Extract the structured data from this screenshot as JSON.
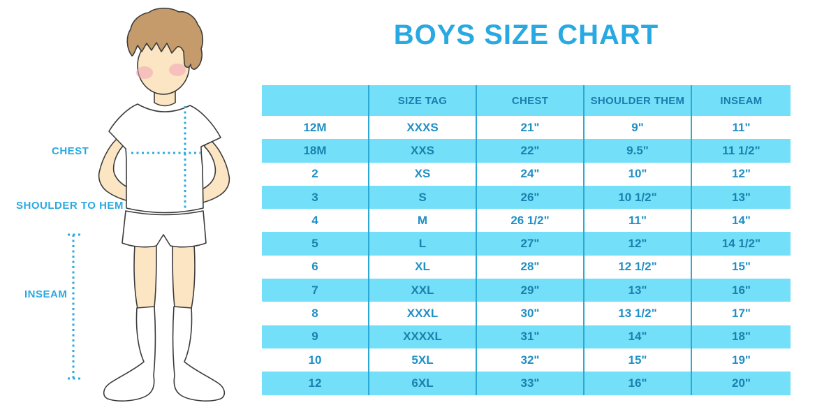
{
  "title": "BOYS SIZE CHART",
  "colors": {
    "accent_blue": "#29A9E1",
    "row_light_blue": "#74DFF8",
    "grid_line_blue": "#2BA9D6",
    "header_text_blue": "#1B7CAD",
    "cell_text_blue": "#1F8FC6",
    "skin": "#FBE5C2",
    "hair": "#C59B6B",
    "blush": "#F2A4B8",
    "outline": "#3B3B3B"
  },
  "figure": {
    "labels": {
      "chest": "CHEST",
      "shoulder_to_hem": "SHOULDER TO HEM",
      "inseam": "INSEAM"
    }
  },
  "chart_data": {
    "type": "table",
    "title": "BOYS SIZE CHART",
    "columns": [
      "",
      "SIZE TAG",
      "CHEST",
      "SHOULDER THEM",
      "INSEAM"
    ],
    "rows": [
      [
        "12M",
        "XXXS",
        "21\"",
        "9\"",
        "11\""
      ],
      [
        "18M",
        "XXS",
        "22\"",
        "9.5\"",
        "11 1/2\""
      ],
      [
        "2",
        "XS",
        "24\"",
        "10\"",
        "12\""
      ],
      [
        "3",
        "S",
        "26\"",
        "10 1/2\"",
        "13\""
      ],
      [
        "4",
        "M",
        "26 1/2\"",
        "11\"",
        "14\""
      ],
      [
        "5",
        "L",
        "27\"",
        "12\"",
        "14 1/2\""
      ],
      [
        "6",
        "XL",
        "28\"",
        "12 1/2\"",
        "15\""
      ],
      [
        "7",
        "XXL",
        "29\"",
        "13\"",
        "16\""
      ],
      [
        "8",
        "XXXL",
        "30\"",
        "13 1/2\"",
        "17\""
      ],
      [
        "9",
        "XXXXL",
        "31\"",
        "14\"",
        "18\""
      ],
      [
        "10",
        "5XL",
        "32\"",
        "15\"",
        "19\""
      ],
      [
        "12",
        "6XL",
        "33\"",
        "16\"",
        "20\""
      ]
    ]
  }
}
